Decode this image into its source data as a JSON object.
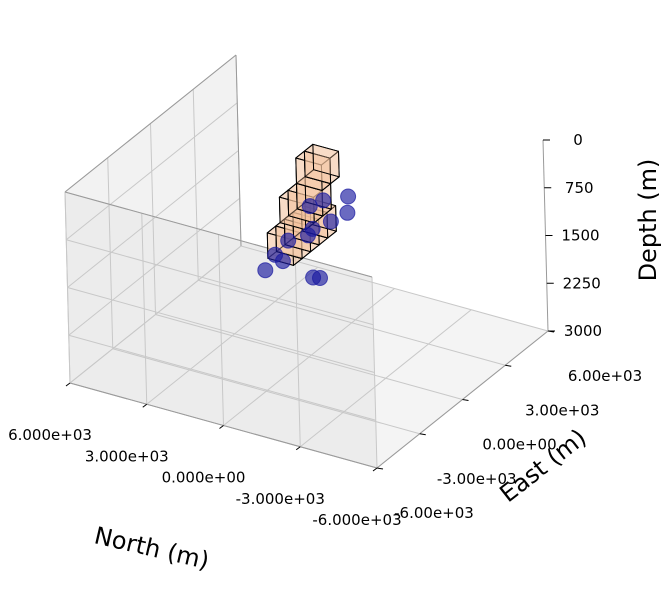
{
  "chart_data": {
    "type": "scatter",
    "projection": "3d",
    "xlabel": "North (m)",
    "ylabel": "East (m)",
    "zlabel": "Depth (m)",
    "xlim": [
      -6000,
      6000
    ],
    "ylim": [
      -6000,
      6000
    ],
    "zlim": [
      0,
      3000
    ],
    "z_inverted": true,
    "x_ticks": [
      "6.000e+03",
      "3.000e+03",
      "0.000e+00",
      "-3.000e+03",
      "-6.000e+03"
    ],
    "y_ticks": [
      "-6.00e+03",
      "-3.00e+03",
      "0.00e+00",
      "3.00e+03",
      "6.00e+03"
    ],
    "z_ticks": [
      "0",
      "750",
      "1500",
      "2250",
      "3000"
    ],
    "grid": true,
    "pane_color": "#f2f2f2",
    "box_face_color": "#f4c49e",
    "box_edge_color": "#000000",
    "point_color": "#1a1aa0",
    "boxes": [
      {
        "x": [
          0,
          1000
        ],
        "y": [
          -900,
          -300
        ],
        "z": [
          1000,
          1400
        ]
      },
      {
        "x": [
          0,
          1000
        ],
        "y": [
          -300,
          300
        ],
        "z": [
          1000,
          1400
        ]
      },
      {
        "x": [
          0,
          1000
        ],
        "y": [
          300,
          900
        ],
        "z": [
          1000,
          1400
        ]
      },
      {
        "x": [
          0,
          1000
        ],
        "y": [
          900,
          1500
        ],
        "z": [
          1000,
          1400
        ]
      },
      {
        "x": [
          0,
          1000
        ],
        "y": [
          1500,
          2100
        ],
        "z": [
          1000,
          1400
        ]
      },
      {
        "x": [
          0,
          1000
        ],
        "y": [
          0,
          600
        ],
        "z": [
          600,
          1000
        ]
      },
      {
        "x": [
          0,
          1000
        ],
        "y": [
          600,
          1200
        ],
        "z": [
          600,
          1000
        ]
      },
      {
        "x": [
          0,
          1000
        ],
        "y": [
          1200,
          1800
        ],
        "z": [
          600,
          1000
        ]
      },
      {
        "x": [
          0,
          1000
        ],
        "y": [
          1200,
          1800
        ],
        "z": [
          200,
          600
        ]
      },
      {
        "x": [
          0,
          1000
        ],
        "y": [
          1800,
          2400
        ],
        "z": [
          200,
          600
        ]
      }
    ],
    "points": [
      {
        "x": 1000,
        "y": -1100,
        "z": 1550
      },
      {
        "x": 800,
        "y": -750,
        "z": 1350
      },
      {
        "x": 700,
        "y": -400,
        "z": 1500
      },
      {
        "x": 700,
        "y": 0,
        "z": 1250
      },
      {
        "x": -300,
        "y": -100,
        "z": 1700
      },
      {
        "x": -400,
        "y": 200,
        "z": 1750
      },
      {
        "x": 200,
        "y": 500,
        "z": 1200
      },
      {
        "x": 300,
        "y": 1000,
        "z": 1200
      },
      {
        "x": 500,
        "y": 1200,
        "z": 900
      },
      {
        "x": -200,
        "y": 1400,
        "z": 1100
      },
      {
        "x": 200,
        "y": 1600,
        "z": 850
      },
      {
        "x": -600,
        "y": 1850,
        "z": 1000
      },
      {
        "x": -500,
        "y": 2100,
        "z": 800
      }
    ]
  }
}
